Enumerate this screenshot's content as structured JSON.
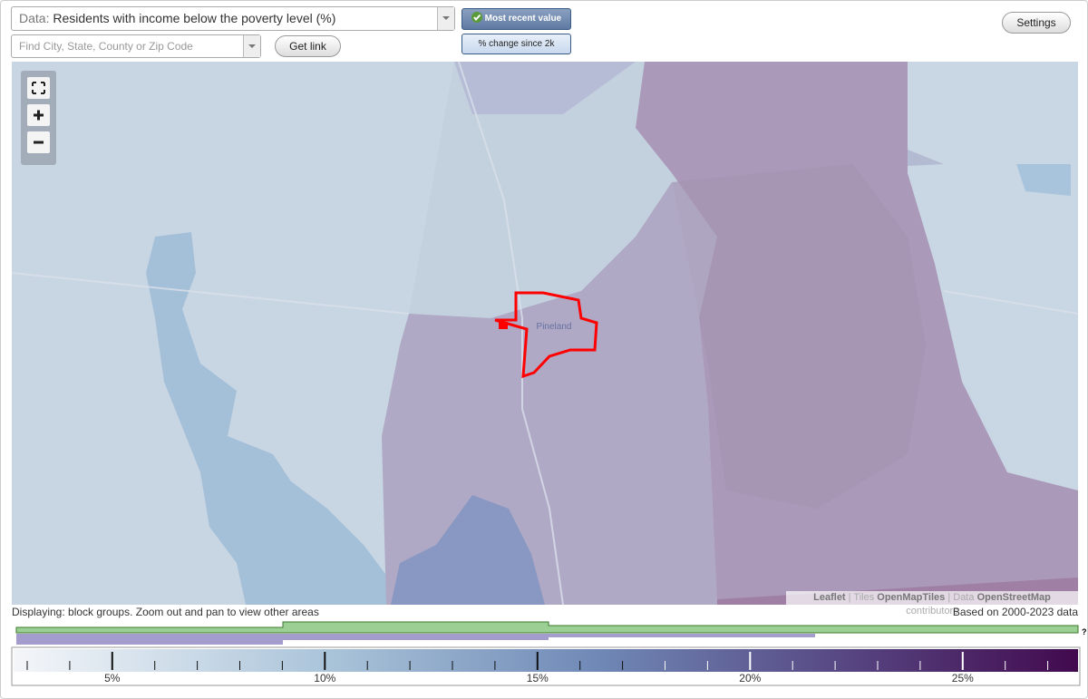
{
  "controls": {
    "data_label": "Data:",
    "data_value": "Residents with income below the poverty level (%)",
    "most_recent": "Most recent value",
    "pct_change": "% change since 2k",
    "search_placeholder": "Find City, State, County or Zip Code",
    "get_link": "Get link",
    "settings": "Settings"
  },
  "map": {
    "place_label": "Pineland",
    "attribution": [
      "Leaflet",
      "|",
      "Tiles",
      "OpenMapTiles",
      "|",
      "Data",
      "OpenStreetMap",
      "contributors"
    ]
  },
  "footer": {
    "displaying": "Displaying: block groups. Zoom out and pan to view other areas",
    "based_on": "Based on 2000-2023 data"
  },
  "legend": {
    "help": "?",
    "labels": [
      "5%",
      "10%",
      "15%",
      "20%",
      "25%"
    ]
  }
}
